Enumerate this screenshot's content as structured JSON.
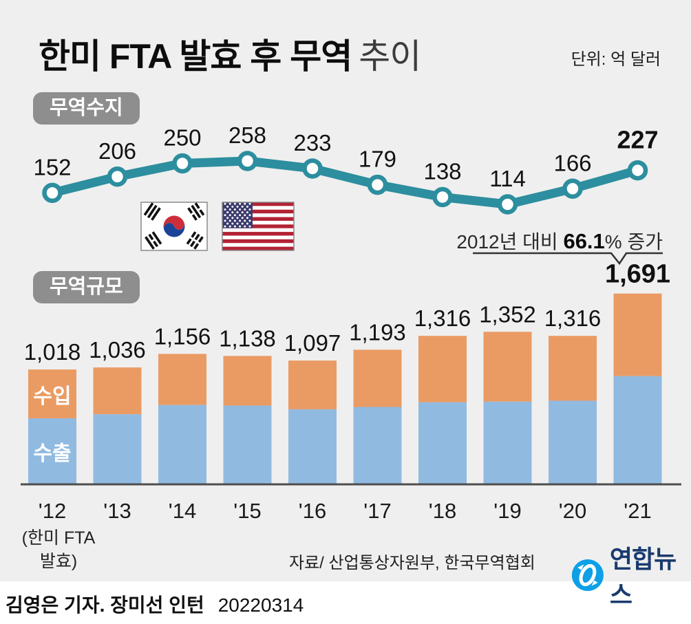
{
  "page": {
    "title_bold": "한미 FTA 발효 후 무역",
    "title_light": "추이",
    "unit_label": "단위: 억 달러",
    "source": "자료/ 산업통상자원부, 한국무역협회",
    "logo_text": "연합뉴스",
    "byline_names": "김영은 기자. 장미선 인턴",
    "byline_date": "20220314",
    "footnote_line1": "(한미 FTA",
    "footnote_line2": "발효)"
  },
  "badges": {
    "balance": "무역수지",
    "volume": "무역규모"
  },
  "annotation": {
    "pre": "2012년 대비 ",
    "strong": "66.1",
    "post": "% 증가"
  },
  "colors": {
    "background": "#efefef",
    "line": "#2c8e9e",
    "exports": "#91bae1",
    "imports": "#ea9b63",
    "badge": "#8e8e8e",
    "axis": "#4d4d4d",
    "label": "#111111",
    "logo_blue": "#0da0e6",
    "logo_navy": "#1a3b6e"
  },
  "chart_data": [
    {
      "type": "line",
      "name": "trade-balance",
      "title": "무역수지",
      "unit": "억 달러",
      "categories": [
        "'12",
        "'13",
        "'14",
        "'15",
        "'16",
        "'17",
        "'18",
        "'19",
        "'20",
        "'21"
      ],
      "values": [
        152,
        206,
        250,
        258,
        233,
        179,
        138,
        114,
        166,
        227
      ],
      "value_labels": [
        "152",
        "206",
        "250",
        "258",
        "233",
        "179",
        "138",
        "114",
        "166",
        "227"
      ],
      "emphasized_last": true,
      "grid": false,
      "legend_position": "none"
    },
    {
      "type": "bar",
      "name": "trade-volume",
      "title": "무역규모",
      "unit": "억 달러",
      "stacked": true,
      "categories": [
        "'12",
        "'13",
        "'14",
        "'15",
        "'16",
        "'17",
        "'18",
        "'19",
        "'20",
        "'21"
      ],
      "totals": [
        1018,
        1036,
        1156,
        1138,
        1097,
        1193,
        1316,
        1352,
        1316,
        1691
      ],
      "total_labels": [
        "1,018",
        "1,036",
        "1,156",
        "1,138",
        "1,097",
        "1,193",
        "1,316",
        "1,352",
        "1,316",
        "1,691"
      ],
      "series": [
        {
          "name": "수출",
          "color": "#91bae1",
          "values": [
            585,
            621,
            703,
            698,
            665,
            686,
            727,
            733,
            741,
            959
          ]
        },
        {
          "name": "수입",
          "color": "#ea9b63",
          "values": [
            433,
            415,
            453,
            440,
            432,
            507,
            589,
            619,
            575,
            732
          ]
        }
      ],
      "annotation": "2012년 대비 66.1% 증가",
      "emphasized_last": true,
      "grid": false,
      "legend_position": "inside-first-bar",
      "ylim": [
        0,
        1750
      ]
    }
  ]
}
